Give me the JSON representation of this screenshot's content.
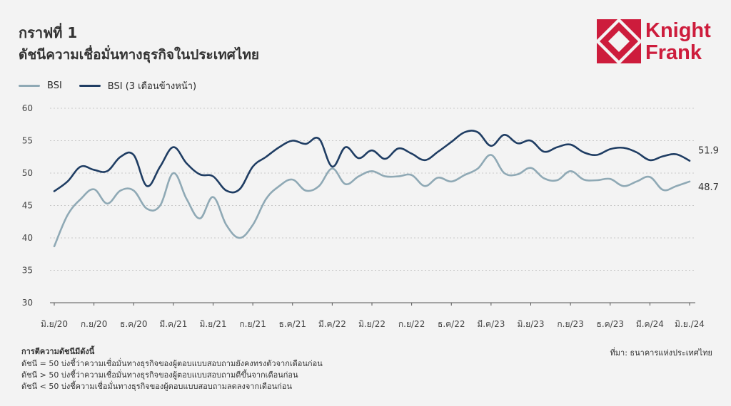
{
  "header": {
    "title_line1": "กราฟที่ 1",
    "title_line2": "ดัชนีความเชื่อมั่นทางธุรกิจในประเทศไทย"
  },
  "logo": {
    "line1": "Knight",
    "line2": "Frank",
    "color": "#cd1c3c"
  },
  "legend": {
    "items": [
      {
        "label": "BSI",
        "color": "#8fa9b5"
      },
      {
        "label": "BSI (3 เดือนข้างหน้า)",
        "color": "#1f3d63"
      }
    ]
  },
  "notes": {
    "title": "การตีความดัชนีมีดังนี้",
    "lines": [
      "ดัชนี = 50 บ่งชี้ว่าความเชื่อมั่นทางธุรกิจของผู้ตอบแบบสอบถามยังคงทรงตัวจากเดือนก่อน",
      "ดัชนี > 50 บ่งชี้ว่าความเชื่อมั่นทางธุรกิจของผู้ตอบแบบสอบถามดีขึ้นจากเดือนก่อน",
      "ดัชนี < 50 บ่งชี้ความเชื่อมั่นทางธุรกิจของผู้ตอบแบบสอบถามลดลงจากเดือนก่อน"
    ]
  },
  "source": "ที่มา: ธนาคารแห่งประเทศไทย",
  "chart_data": {
    "type": "line",
    "ylim": [
      30,
      60
    ],
    "yticks": [
      30,
      35,
      40,
      45,
      50,
      55,
      60
    ],
    "grid": true,
    "legend_position": "top-left",
    "xtick_labels": [
      "มิ.ย/20",
      "ก.ย/20",
      "ธ.ค/20",
      "มี.ค/21",
      "มิ.ย/21",
      "ก.ย/21",
      "ธ.ค/21",
      "มี.ค/22",
      "มิ.ย/22",
      "ก.ย/22",
      "ธ.ค/22",
      "มี.ค/23",
      "มิ.ย/23",
      "ก.ย/23",
      "ธ.ค/23",
      "มี.ค/24",
      "มิ.ย./24"
    ],
    "series": [
      {
        "name": "BSI",
        "color": "#8fa9b5",
        "end_label": "48.7",
        "values": [
          38.7,
          43.5,
          46.0,
          47.5,
          45.3,
          47.3,
          47.3,
          44.5,
          45.0,
          50.0,
          46.0,
          43.0,
          46.3,
          42.0,
          40.0,
          42.0,
          46.0,
          48.0,
          49.0,
          47.3,
          48.0,
          50.7,
          48.3,
          49.5,
          50.3,
          49.5,
          49.5,
          49.7,
          48.0,
          49.3,
          48.7,
          49.7,
          50.7,
          52.8,
          50.0,
          49.8,
          50.8,
          49.2,
          48.9,
          50.3,
          49.0,
          48.9,
          49.1,
          48.0,
          48.7,
          49.4,
          47.4,
          48.0,
          48.7
        ]
      },
      {
        "name": "BSI (3 เดือนข้างหน้า)",
        "color": "#1f3d63",
        "end_label": "51.9",
        "values": [
          47.2,
          48.7,
          51.0,
          50.5,
          50.3,
          52.5,
          52.8,
          48.0,
          51.0,
          54.0,
          51.5,
          49.8,
          49.5,
          47.3,
          47.5,
          51.0,
          52.5,
          54.0,
          55.0,
          54.5,
          55.3,
          51.0,
          54.0,
          52.3,
          53.5,
          52.2,
          53.8,
          53.0,
          52.0,
          53.3,
          54.8,
          56.3,
          56.3,
          54.2,
          55.9,
          54.6,
          55.0,
          53.3,
          54.0,
          54.4,
          53.2,
          52.8,
          53.7,
          53.9,
          53.2,
          52.0,
          52.6,
          52.9,
          51.9
        ]
      }
    ]
  }
}
